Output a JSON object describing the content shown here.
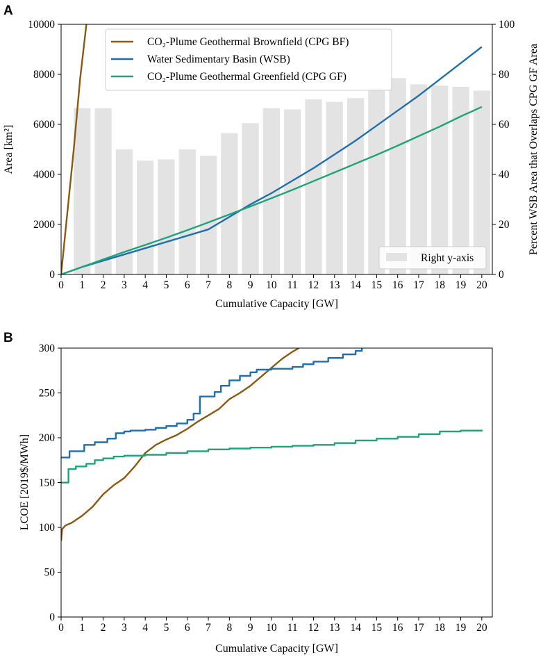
{
  "panel_labels": [
    "A",
    "B"
  ],
  "colors": {
    "cpg_bf": "#8B5A12",
    "wsb": "#1F6FAE",
    "cpg_gf": "#1FA37A",
    "bars": "#E3E3E3"
  },
  "chart_data": [
    {
      "id": "A",
      "type": "line",
      "xlabel": "Cumulative Capacity [GW]",
      "ylabel": "Area [km²]",
      "ylabel_right": "Percent WSB Area that Overlaps CPG GF Area",
      "xlim": [
        0,
        20.5
      ],
      "ylim": [
        0,
        10000
      ],
      "ylim_right": [
        0,
        100
      ],
      "xticks": [
        "0",
        "1",
        "2",
        "3",
        "4",
        "5",
        "6",
        "7",
        "8",
        "9",
        "10",
        "11",
        "12",
        "13",
        "14",
        "15",
        "16",
        "17",
        "18",
        "19",
        "20"
      ],
      "yticks": [
        "0",
        "2000",
        "4000",
        "6000",
        "8000",
        "10000"
      ],
      "yticks_right": [
        "0",
        "20",
        "40",
        "60",
        "80",
        "100"
      ],
      "legend": [
        "CO₂-Plume Geothermal Brownfield (CPG BF)",
        "Water Sedimentary Basin (WSB)",
        "CO₂-Plume Geothermal Greenfield (CPG GF)"
      ],
      "legend_position": "top-center",
      "bar_legend": "Right y-axis",
      "bar_legend_position": "lower-right",
      "series": [
        {
          "name": "CO₂-Plume Geothermal Brownfield (CPG BF)",
          "color_key": "cpg_bf",
          "x": [
            0,
            0.3,
            0.6,
            0.9,
            1.2
          ],
          "y": [
            0,
            2500,
            5000,
            7800,
            10000
          ]
        },
        {
          "name": "Water Sedimentary Basin (WSB)",
          "color_key": "wsb",
          "x": [
            0,
            1,
            2,
            3,
            4,
            5,
            6,
            7,
            8,
            9,
            10,
            11,
            12,
            13,
            14,
            15,
            16,
            17,
            18,
            19,
            20
          ],
          "y": [
            0,
            300,
            550,
            800,
            1050,
            1300,
            1550,
            1800,
            2300,
            2800,
            3250,
            3750,
            4250,
            4800,
            5350,
            5950,
            6550,
            7150,
            7800,
            8450,
            9100
          ]
        },
        {
          "name": "CO₂-Plume Geothermal Greenfield (CPG GF)",
          "color_key": "cpg_gf",
          "x": [
            0,
            1,
            2,
            3,
            4,
            5,
            6,
            7,
            8,
            9,
            10,
            11,
            12,
            13,
            14,
            15,
            16,
            17,
            18,
            19,
            20
          ],
          "y": [
            0,
            300,
            600,
            900,
            1180,
            1470,
            1770,
            2080,
            2400,
            2720,
            3050,
            3380,
            3730,
            4080,
            4430,
            4780,
            5150,
            5530,
            5910,
            6320,
            6700
          ]
        }
      ],
      "bars": {
        "axis": "right",
        "x": [
          1,
          2,
          3,
          4,
          5,
          6,
          7,
          8,
          9,
          10,
          11,
          12,
          13,
          14,
          15,
          16,
          17,
          18,
          19,
          20
        ],
        "values": [
          66.5,
          66.5,
          50,
          45.5,
          46,
          50,
          47.5,
          56.5,
          60.5,
          66.5,
          66,
          70,
          69,
          70.5,
          74.5,
          78.5,
          76,
          75.5,
          75,
          73.5
        ]
      }
    },
    {
      "id": "B",
      "type": "line",
      "xlabel": "Cumulative Capacity [GW]",
      "ylabel": "LCOE [2019$/MWh]",
      "xlim": [
        0,
        20.5
      ],
      "ylim": [
        0,
        300
      ],
      "xticks": [
        "0",
        "1",
        "2",
        "3",
        "4",
        "5",
        "6",
        "7",
        "8",
        "9",
        "10",
        "11",
        "12",
        "13",
        "14",
        "15",
        "16",
        "17",
        "18",
        "19",
        "20"
      ],
      "yticks": [
        "0",
        "50",
        "100",
        "150",
        "200",
        "250",
        "300"
      ],
      "series": [
        {
          "name": "CO₂-Plume Geothermal Brownfield (CPG BF)",
          "color_key": "cpg_bf",
          "step": false,
          "x": [
            0,
            0.05,
            0.2,
            0.5,
            1,
            1.5,
            2,
            2.5,
            3,
            3.5,
            4,
            4.5,
            5,
            5.5,
            6,
            6.5,
            7,
            7.5,
            8,
            8.5,
            9,
            9.5,
            10,
            10.5,
            11,
            11.3
          ],
          "y": [
            85,
            98,
            102,
            105,
            113,
            123,
            137,
            147,
            155,
            168,
            183,
            192,
            198,
            203,
            210,
            218,
            225,
            232,
            243,
            250,
            258,
            268,
            278,
            288,
            296,
            300
          ]
        },
        {
          "name": "Water Sedimentary Basin (WSB)",
          "color_key": "wsb",
          "step": true,
          "x": [
            0,
            0.4,
            1.1,
            1.6,
            2.2,
            2.6,
            3.0,
            3.3,
            4.0,
            4.5,
            5.0,
            5.5,
            6.0,
            6.3,
            6.6,
            7.3,
            7.6,
            8.0,
            8.5,
            9.0,
            9.3,
            10.0,
            11.0,
            11.5,
            12.0,
            12.7,
            13.4,
            14.0,
            14.3
          ],
          "y": [
            178,
            185,
            192,
            195,
            199,
            205,
            207,
            208,
            209,
            211,
            213,
            216,
            220,
            227,
            246,
            251,
            258,
            264,
            269,
            273,
            276,
            277,
            279,
            282,
            285,
            289,
            293,
            297,
            300
          ]
        },
        {
          "name": "CO₂-Plume Geothermal Greenfield (CPG GF)",
          "color_key": "cpg_gf",
          "step": true,
          "x": [
            0,
            0.35,
            0.7,
            1.2,
            1.6,
            2.0,
            2.5,
            3.0,
            3.5,
            4.0,
            5.0,
            6.0,
            7.0,
            8.0,
            9.0,
            10.0,
            11.0,
            12.0,
            13.0,
            14.0,
            15.0,
            16.0,
            17.0,
            18.0,
            19.0,
            20.0
          ],
          "y": [
            150,
            165,
            168,
            171,
            175,
            177,
            179,
            180,
            180,
            181,
            183,
            185,
            187,
            188,
            189,
            190,
            191,
            192,
            194,
            197,
            199,
            201,
            204,
            207,
            208,
            209
          ]
        }
      ]
    }
  ]
}
